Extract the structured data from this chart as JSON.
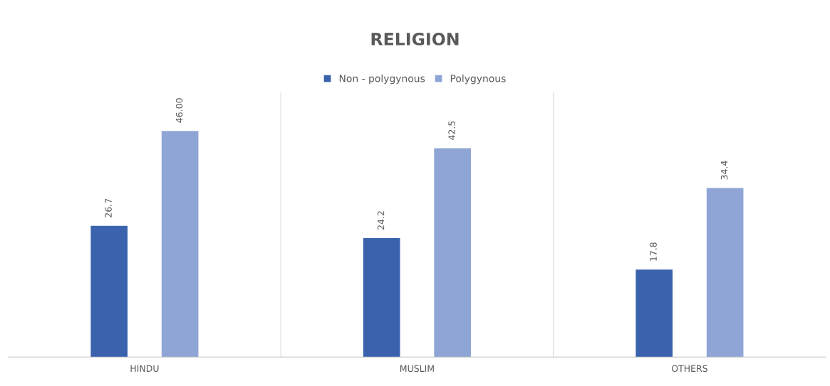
{
  "chart_data": {
    "type": "bar",
    "title": "RELIGION",
    "categories": [
      "HINDU",
      "MUSLIM",
      "OTHERS"
    ],
    "series": [
      {
        "name": "Non - polygynous",
        "color": "#3a62ad",
        "values": [
          26.7,
          24.2,
          17.8
        ],
        "value_labels": [
          "26.7",
          "24.2",
          "17.8"
        ]
      },
      {
        "name": "Polygynous",
        "color": "#8fa5d5",
        "values": [
          46.0,
          42.5,
          34.4
        ],
        "value_labels": [
          "46.00",
          "42.5",
          "34.4"
        ]
      }
    ],
    "legend": "top"
  }
}
